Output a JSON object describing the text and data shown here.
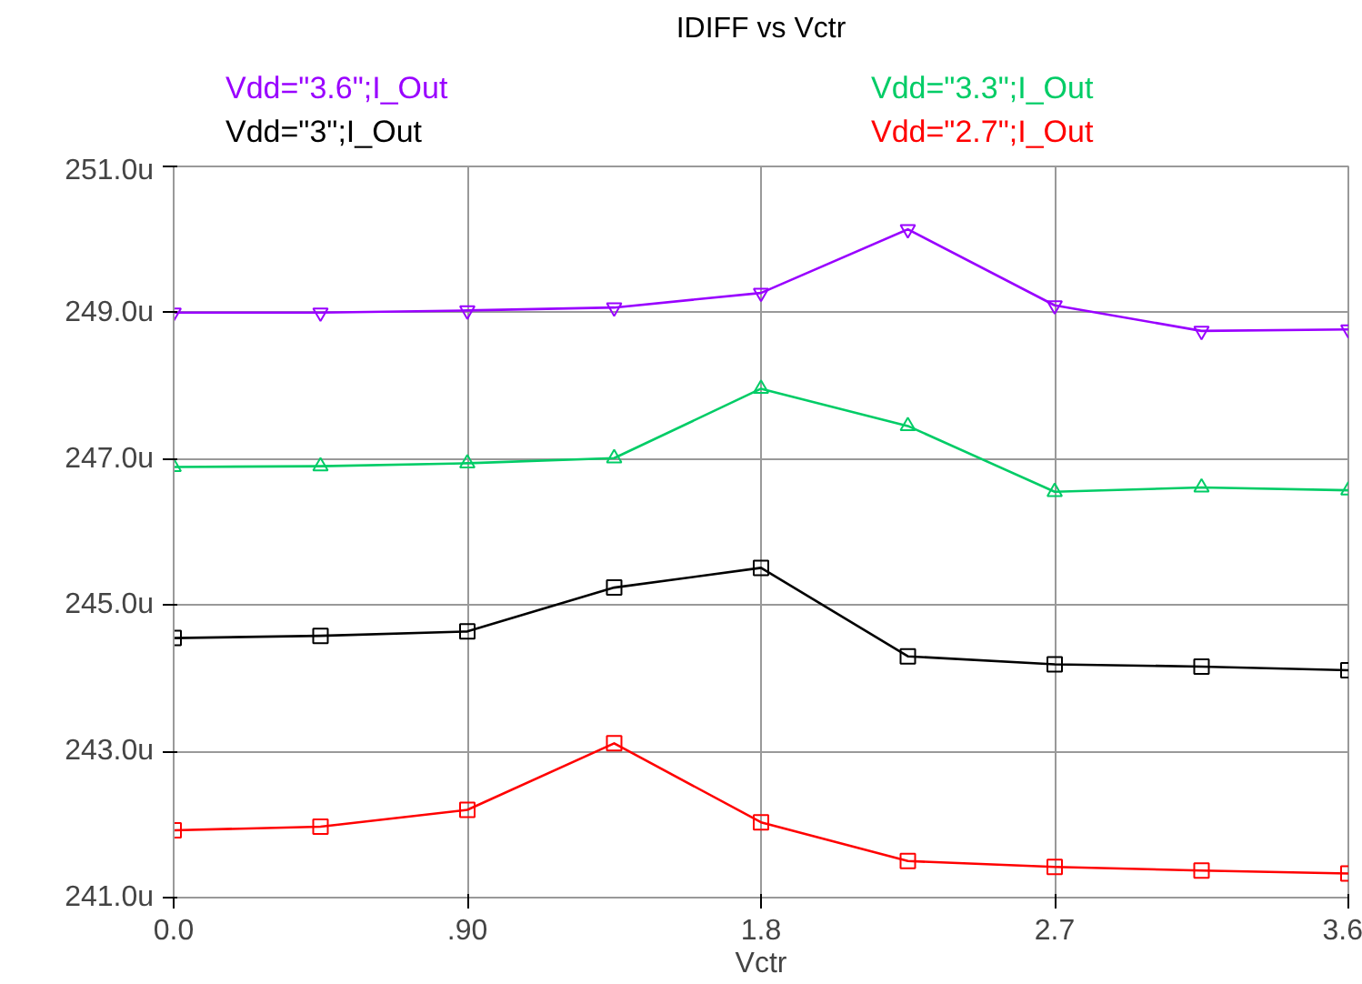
{
  "chart_data": {
    "type": "line",
    "title": "IDIFF vs Vctr",
    "xlabel": "Vctr",
    "x": [
      0,
      0.45,
      0.9,
      1.35,
      1.8,
      2.25,
      2.7,
      3.15,
      3.6
    ],
    "series": [
      {
        "name": "Vdd=\"3.6\";I_Out",
        "color": "#9900ff",
        "marker": "triangle_down",
        "values": [
          249.0,
          249.0,
          249.03,
          249.07,
          249.27,
          250.14,
          249.1,
          248.75,
          248.77
        ]
      },
      {
        "name": "Vdd=\"3.3\";I_Out",
        "color": "#00cc66",
        "marker": "triangle",
        "values": [
          246.89,
          246.9,
          246.94,
          247.01,
          247.96,
          247.45,
          246.55,
          246.61,
          246.57
        ]
      },
      {
        "name": "Vdd=\"3\";I_Out",
        "color": "#000000",
        "marker": "square",
        "values": [
          244.55,
          244.58,
          244.64,
          245.24,
          245.51,
          244.3,
          244.19,
          244.16,
          244.11
        ]
      },
      {
        "name": "Vdd=\"2.7\";I_Out",
        "color": "#ff0000",
        "marker": "square",
        "values": [
          241.92,
          241.97,
          242.2,
          243.11,
          242.03,
          241.5,
          241.42,
          241.37,
          241.33
        ]
      }
    ],
    "xlim": [
      0,
      3.6
    ],
    "ylim": [
      241,
      251
    ],
    "xticks": [
      {
        "value": 0,
        "label": "0.0"
      },
      {
        "value": 0.9,
        "label": ".90"
      },
      {
        "value": 1.8,
        "label": "1.8"
      },
      {
        "value": 2.7,
        "label": "2.7"
      },
      {
        "value": 3.6,
        "label": "3.6"
      }
    ],
    "yticks": [
      {
        "value": 241,
        "label": "241.0u"
      },
      {
        "value": 243,
        "label": "243.0u"
      },
      {
        "value": 245,
        "label": "245.0u"
      },
      {
        "value": 247,
        "label": "247.0u"
      },
      {
        "value": 249,
        "label": "249.0u"
      },
      {
        "value": 251,
        "label": "251.0u"
      }
    ],
    "grid": true,
    "legend": "top",
    "line_style": "solid"
  }
}
